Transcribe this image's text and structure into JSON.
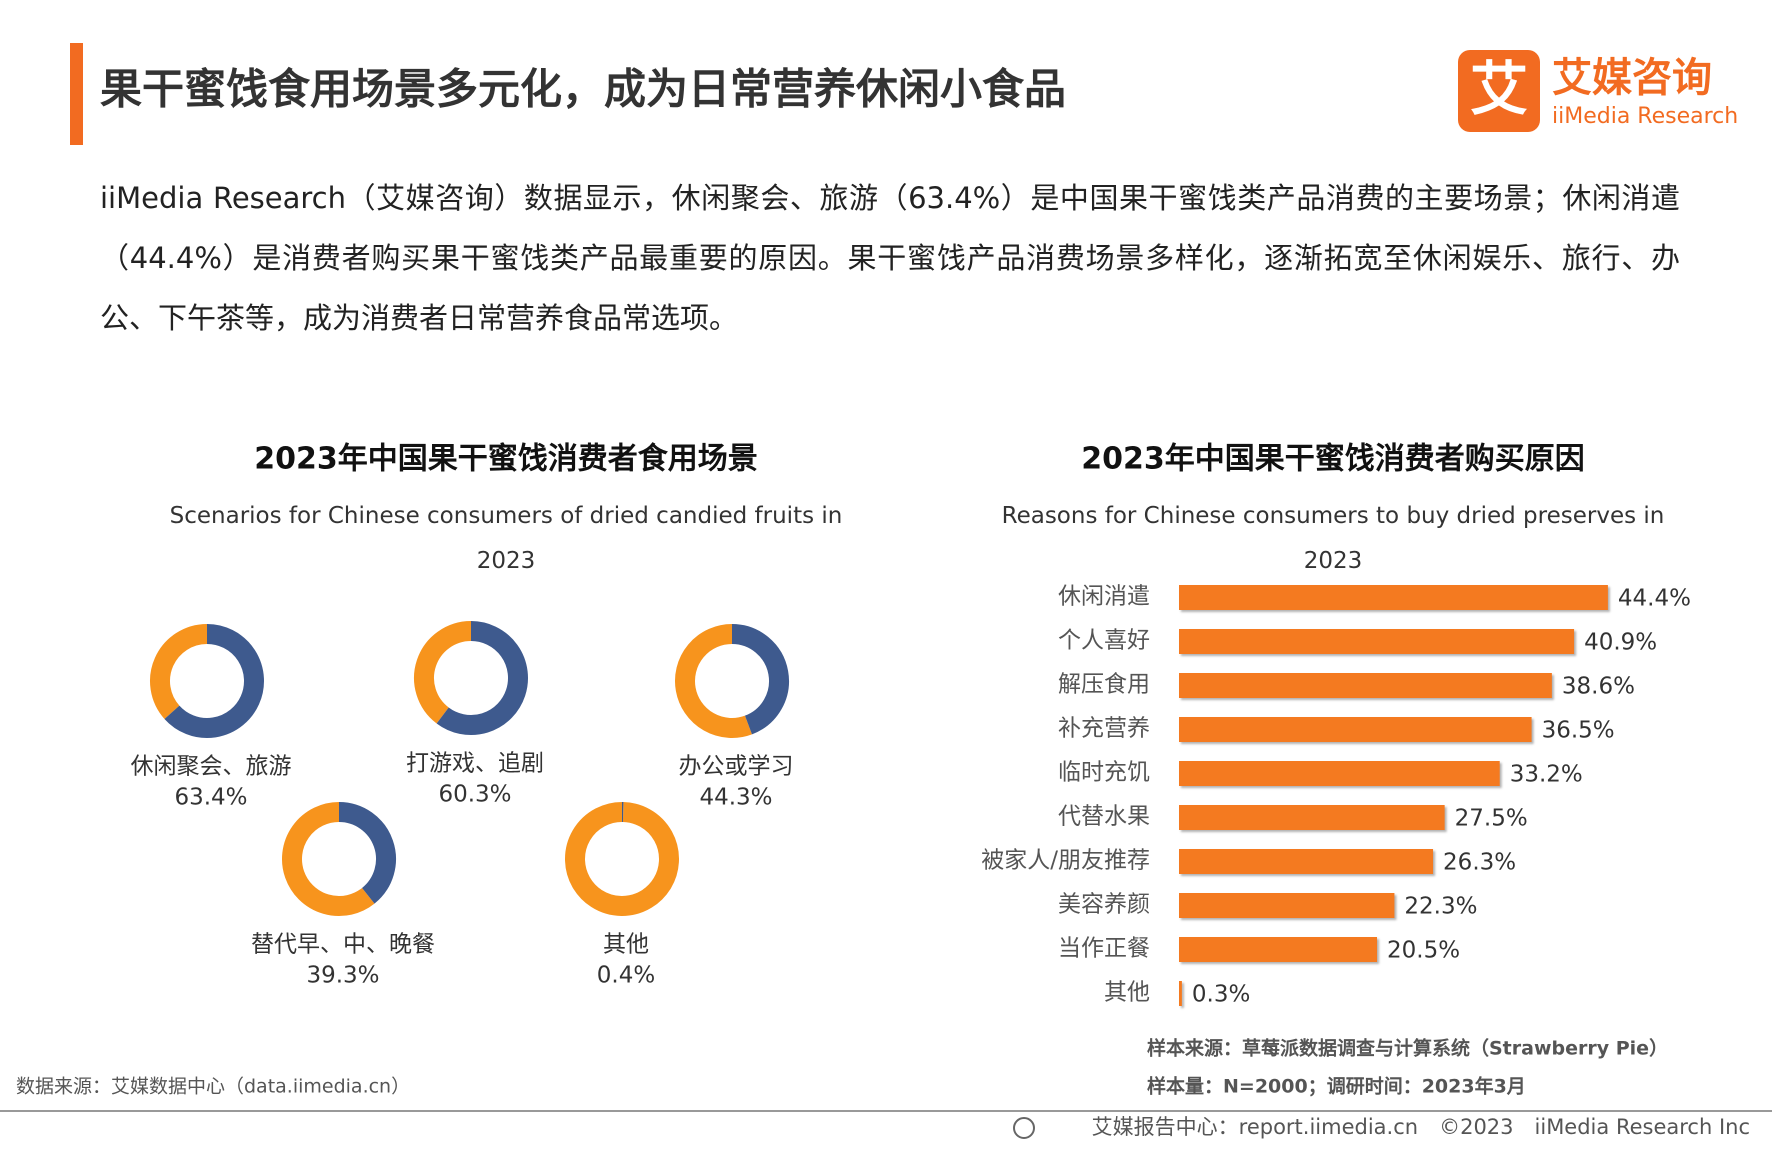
{
  "header": {
    "title": "果干蜜饯食用场景多元化，成为日常营养休闲小食品",
    "logo_icon": "艾",
    "logo_cn": "艾媒咨询",
    "logo_en": "iiMedia Research"
  },
  "paragraph": "iiMedia Research（艾媒咨询）数据显示，休闲聚会、旅游（63.4%）是中国果干蜜饯类产品消费的主要场景；休闲消遣（44.4%）是消费者购买果干蜜饯类产品最重要的原因。果干蜜饯产品消费场景多样化，逐渐拓宽至休闲娱乐、旅行、办公、下午茶等，成为消费者日常营养食品常选项。",
  "chart_data": [
    {
      "type": "donut",
      "title": "2023年中国果干蜜饯消费者食用场景",
      "subtitle": "Scenarios for Chinese consumers of dried candied fruits in 2023",
      "categories": [
        "休闲聚会、旅游",
        "打游戏、追剧",
        "办公或学习",
        "替代早、中、晚餐",
        "其他"
      ],
      "values": [
        63.4,
        60.3,
        44.3,
        39.3,
        0.4
      ],
      "value_labels": [
        "63.4%",
        "60.3%",
        "44.3%",
        "39.3%",
        "0.4%"
      ],
      "colors": [
        "#3e5a8e",
        "#f7941d"
      ]
    },
    {
      "type": "hbar",
      "title": "2023年中国果干蜜饯消费者购买原因",
      "subtitle": "Reasons for Chinese consumers to buy dried preserves in 2023",
      "categories": [
        "休闲消遣",
        "个人喜好",
        "解压食用",
        "补充营养",
        "临时充饥",
        "代替水果",
        "被家人/朋友推荐",
        "美容养颜",
        "当作正餐",
        "其他"
      ],
      "values": [
        44.4,
        40.9,
        38.6,
        36.5,
        33.2,
        27.5,
        26.3,
        22.3,
        20.5,
        0.3
      ],
      "value_labels": [
        "44.4%",
        "40.9%",
        "38.6%",
        "36.5%",
        "33.2%",
        "27.5%",
        "26.3%",
        "22.3%",
        "20.5%",
        "0.3%"
      ],
      "xlim": [
        0,
        50
      ],
      "color": "#f47a20"
    }
  ],
  "footer": {
    "source": "数据来源：艾媒数据中心（data.iimedia.cn）",
    "sample_source": "样本来源：草莓派数据调查与计算系统（Strawberry Pie）",
    "sample_size": "样本量：N=2000；调研时间：2023年3月",
    "copyright": "艾媒报告中心：report.iimedia.cn　©2023　iiMedia Research Inc"
  }
}
